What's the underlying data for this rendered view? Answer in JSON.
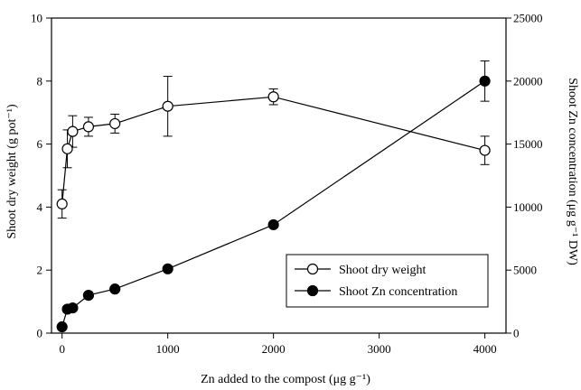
{
  "chart_data": {
    "type": "line",
    "xlabel": "Zn added to the compost (μg g⁻¹)",
    "ylabel": "Shoot dry weight (g pot⁻¹)",
    "y2label": "Shoot Zn concentration (μg g⁻¹ DW)",
    "xlim": [
      -100,
      4200
    ],
    "ylim": [
      0,
      10
    ],
    "y2lim": [
      0,
      25000
    ],
    "xticks": [
      0,
      1000,
      2000,
      3000,
      4000
    ],
    "yticks": [
      0,
      2,
      4,
      6,
      8,
      10
    ],
    "y2ticks": [
      0,
      5000,
      10000,
      15000,
      20000,
      25000
    ],
    "legend_position": "lower-right",
    "series": [
      {
        "name": "Shoot dry weight",
        "axis": "left",
        "marker": "open-circle",
        "x": [
          0,
          50,
          100,
          250,
          500,
          1000,
          2000,
          4000
        ],
        "y": [
          4.1,
          5.85,
          6.4,
          6.55,
          6.65,
          7.2,
          7.5,
          5.8
        ],
        "err": [
          0.45,
          0.6,
          0.5,
          0.3,
          0.3,
          0.95,
          0.25,
          0.45
        ]
      },
      {
        "name": "Shoot Zn concentration",
        "axis": "right",
        "marker": "filled-circle",
        "x": [
          0,
          50,
          100,
          250,
          500,
          1000,
          2000,
          4000
        ],
        "y": [
          500,
          1900,
          2000,
          3000,
          3500,
          5100,
          8600,
          20000
        ],
        "err": [
          0,
          0,
          0,
          0,
          0,
          0,
          0,
          1600
        ]
      }
    ]
  }
}
